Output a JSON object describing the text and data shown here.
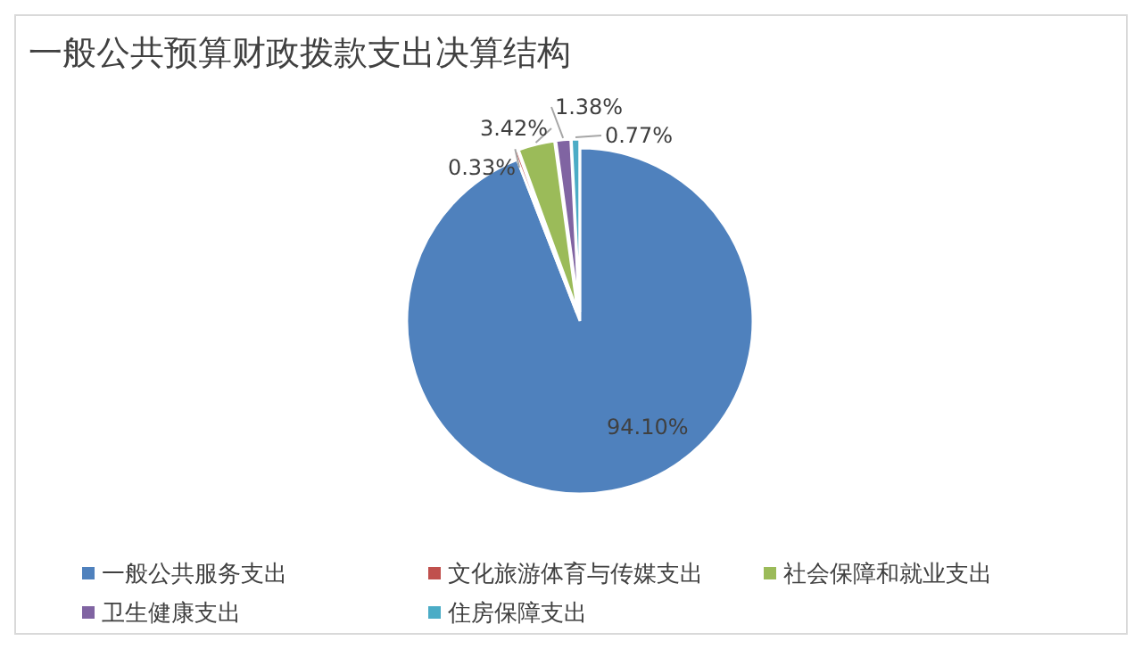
{
  "chart_data": {
    "type": "pie",
    "title": "一般公共预算财政拨款支出决算结构",
    "categories": [
      "一般公共服务支出",
      "文化旅游体育与传媒支出",
      "社会保障和就业支出",
      "卫生健康支出",
      "住房保障支出"
    ],
    "values": [
      94.1,
      0.33,
      3.42,
      1.38,
      0.77
    ],
    "colors": [
      "#4f81bd",
      "#c0504d",
      "#9bbb59",
      "#8064a2",
      "#4bacc6"
    ],
    "value_labels": [
      "94.10%",
      "0.33%",
      "3.42%",
      "1.38%",
      "0.77%"
    ],
    "legend": "bottom"
  }
}
